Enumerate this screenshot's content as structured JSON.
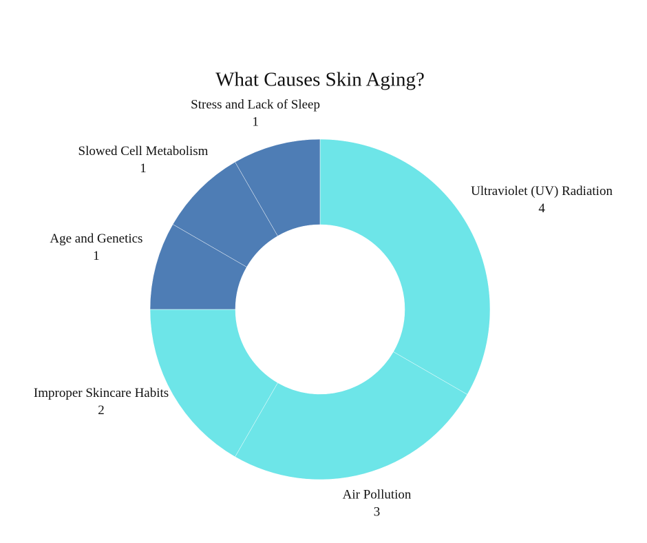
{
  "chart_data": {
    "type": "donut",
    "title": "What Causes Skin Aging?",
    "categories": [
      "Ultraviolet (UV) Radiation",
      "Air Pollution",
      "Improper Skincare Habits",
      "Age and Genetics",
      "Slowed Cell Metabolism",
      "Stress and Lack of Sleep"
    ],
    "values": [
      4,
      3,
      2,
      1,
      1,
      1
    ],
    "colors": [
      "#6de5e8",
      "#6de5e8",
      "#6de5e8",
      "#4e7db5",
      "#4e7db5",
      "#4e7db5"
    ]
  }
}
